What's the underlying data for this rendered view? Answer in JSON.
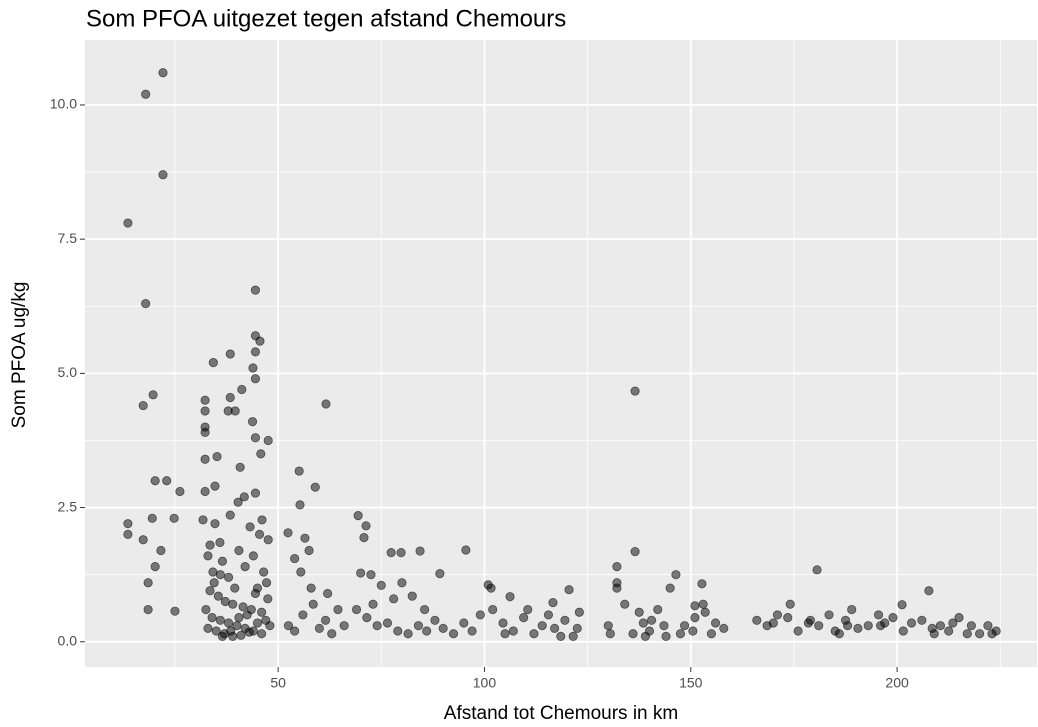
{
  "chart_data": {
    "type": "scatter",
    "title": "Som PFOA uitgezet tegen afstand Chemours",
    "xlabel": "Afstand tot Chemours in km",
    "ylabel": "Som PFOA ug/kg",
    "xlim": [
      3.2,
      233.9
    ],
    "ylim": [
      -0.47,
      11.21
    ],
    "xticks": [
      50,
      100,
      150,
      200
    ],
    "yticks": [
      {
        "value": 0,
        "label": "0.0"
      },
      2.5,
      {
        "value": 5,
        "label": "5.0"
      },
      7.5,
      {
        "value": 10,
        "label": "10.0"
      }
    ],
    "x_minor_grid": [
      25,
      75,
      125,
      175,
      225
    ],
    "y_minor_grid": [
      1.25,
      3.75,
      6.25,
      8.75
    ],
    "grid": true,
    "series": [
      {
        "color": "#000000",
        "x": [
          13.6,
          17.9,
          22.1,
          22.1,
          17.9,
          19.7,
          17.3,
          13.6,
          13.6,
          20.2,
          23.0,
          26.2,
          19.5,
          24.8,
          17.3,
          21.6,
          20.2,
          18.5,
          18.5,
          25.0,
          44.5,
          44.5,
          45.6,
          44.5,
          38.4,
          34.3,
          41.2,
          43.9,
          44.5,
          32.3,
          38.4,
          39.6,
          37.9,
          32.3,
          32.3,
          32.3,
          47.6,
          44.5,
          43.8,
          32.3,
          35.2,
          40.8,
          45.8,
          32.3,
          34.7,
          41.8,
          44.5,
          40.3,
          31.8,
          34.7,
          38.4,
          43.2,
          46.1,
          47.6,
          33.5,
          35.9,
          33.0,
          36.5,
          34.2,
          38.0,
          40.5,
          42.0,
          44.0,
          46.5,
          47.2,
          45.0,
          33.5,
          35.5,
          37.2,
          39.0,
          41.5,
          43.5,
          46.0,
          47.5,
          32.5,
          34.0,
          36.0,
          38.0,
          40.0,
          42.0,
          44.0,
          46.0,
          48.0,
          33.0,
          35.0,
          37.0,
          39.0,
          41.0,
          43.0,
          45.0,
          36.5,
          38.5,
          40.5,
          42.5,
          44.5,
          47.0,
          34.5,
          36.0,
          45.5,
          39.5,
          61.6,
          55.1,
          59.0,
          55.3,
          52.4,
          56.5,
          57.5,
          54.0,
          55.5,
          58.0,
          52.5,
          54.0,
          56.0,
          58.5,
          60.0,
          61.5,
          63.0,
          64.5,
          66.0,
          62.0,
          69.4,
          71.3,
          70.8,
          77.4,
          79.8,
          84.4,
          95.5,
          89.2,
          70.0,
          72.5,
          75.0,
          78.0,
          80.0,
          82.5,
          69.0,
          71.5,
          74.0,
          76.5,
          79.0,
          81.5,
          84.0,
          86.0,
          88.0,
          90.0,
          92.5,
          95.0,
          97.0,
          99.0,
          73.0,
          85.5,
          100.9,
          101.6,
          106.2,
          116.6,
          120.5,
          102.0,
          104.5,
          107.0,
          109.5,
          112.0,
          114.0,
          117.0,
          119.5,
          121.5,
          123.0,
          110.5,
          105.0,
          115.5,
          122.5,
          118.5,
          132.1,
          132.1,
          132.1,
          136.5,
          136.5,
          146.4,
          145.0,
          152.7,
          151.0,
          151.0,
          130.0,
          130.5,
          134.0,
          136.0,
          138.5,
          140.0,
          142.0,
          143.5,
          144.0,
          148.5,
          150.5,
          153.5,
          156.0,
          158.0,
          155.0,
          140.5,
          147.5,
          139.0,
          137.5,
          153.0,
          180.6,
          207.7,
          201.2,
          174.1,
          166.0,
          168.5,
          171.0,
          173.5,
          176.0,
          178.5,
          181.0,
          183.5,
          185.0,
          187.5,
          189.0,
          190.5,
          193.0,
          195.5,
          197.0,
          199.0,
          201.5,
          203.5,
          206.0,
          208.5,
          210.5,
          212.5,
          215.0,
          218.0,
          220.0,
          222.0,
          224.0,
          223.0,
          209.0,
          196.0,
          186.0,
          179.0,
          170.0,
          188.0,
          213.5,
          217.0
        ],
        "values": [
          7.8,
          10.2,
          10.6,
          8.7,
          6.3,
          4.6,
          4.4,
          2.2,
          2.0,
          3.0,
          3.0,
          2.8,
          2.3,
          2.3,
          1.9,
          1.7,
          1.4,
          1.1,
          0.6,
          0.57,
          6.55,
          5.7,
          5.6,
          5.4,
          5.36,
          5.2,
          4.7,
          5.1,
          4.9,
          4.5,
          4.55,
          4.3,
          4.3,
          4.3,
          4.0,
          3.9,
          3.75,
          3.8,
          4.1,
          3.4,
          3.45,
          3.25,
          3.5,
          2.8,
          2.9,
          2.7,
          2.77,
          2.6,
          2.27,
          2.2,
          2.36,
          2.14,
          2.27,
          1.9,
          1.8,
          1.85,
          1.6,
          1.5,
          1.3,
          1.2,
          1.7,
          1.4,
          1.6,
          1.3,
          1.1,
          1.0,
          0.95,
          0.85,
          0.75,
          0.7,
          0.65,
          0.6,
          0.55,
          0.8,
          0.6,
          0.45,
          0.4,
          0.35,
          0.3,
          0.25,
          0.2,
          0.15,
          0.3,
          0.25,
          0.2,
          0.15,
          0.1,
          0.12,
          0.18,
          0.35,
          0.1,
          0.2,
          0.45,
          0.5,
          0.9,
          0.4,
          1.1,
          1.25,
          2.0,
          1.0,
          4.43,
          3.18,
          2.88,
          2.55,
          2.03,
          1.93,
          1.7,
          1.55,
          1.3,
          1.0,
          0.3,
          0.2,
          0.5,
          0.7,
          0.25,
          0.4,
          0.15,
          0.6,
          0.3,
          0.9,
          2.35,
          2.16,
          1.94,
          1.66,
          1.66,
          1.69,
          1.71,
          1.27,
          1.28,
          1.25,
          1.05,
          0.8,
          1.1,
          0.85,
          0.6,
          0.45,
          0.3,
          0.35,
          0.2,
          0.15,
          0.3,
          0.2,
          0.4,
          0.25,
          0.15,
          0.35,
          0.2,
          0.5,
          0.7,
          0.6,
          1.06,
          1.0,
          0.84,
          0.73,
          0.97,
          0.6,
          0.35,
          0.2,
          0.45,
          0.15,
          0.3,
          0.25,
          0.4,
          0.1,
          0.55,
          0.6,
          0.15,
          0.5,
          0.25,
          0.1,
          1.4,
          1.1,
          1.0,
          4.67,
          1.68,
          1.25,
          1.0,
          1.08,
          0.67,
          0.45,
          0.3,
          0.15,
          0.7,
          0.15,
          0.35,
          0.2,
          0.6,
          0.3,
          0.1,
          0.3,
          0.2,
          0.55,
          0.35,
          0.25,
          0.15,
          0.4,
          0.15,
          0.1,
          0.55,
          0.7,
          1.34,
          0.95,
          0.69,
          0.7,
          0.4,
          0.3,
          0.5,
          0.45,
          0.2,
          0.35,
          0.3,
          0.5,
          0.2,
          0.4,
          0.6,
          0.25,
          0.3,
          0.5,
          0.35,
          0.45,
          0.2,
          0.35,
          0.4,
          0.25,
          0.3,
          0.2,
          0.45,
          0.3,
          0.15,
          0.3,
          0.2,
          0.15,
          0.15,
          0.3,
          0.15,
          0.4,
          0.35,
          0.3,
          0.35,
          0.15
        ]
      }
    ]
  }
}
